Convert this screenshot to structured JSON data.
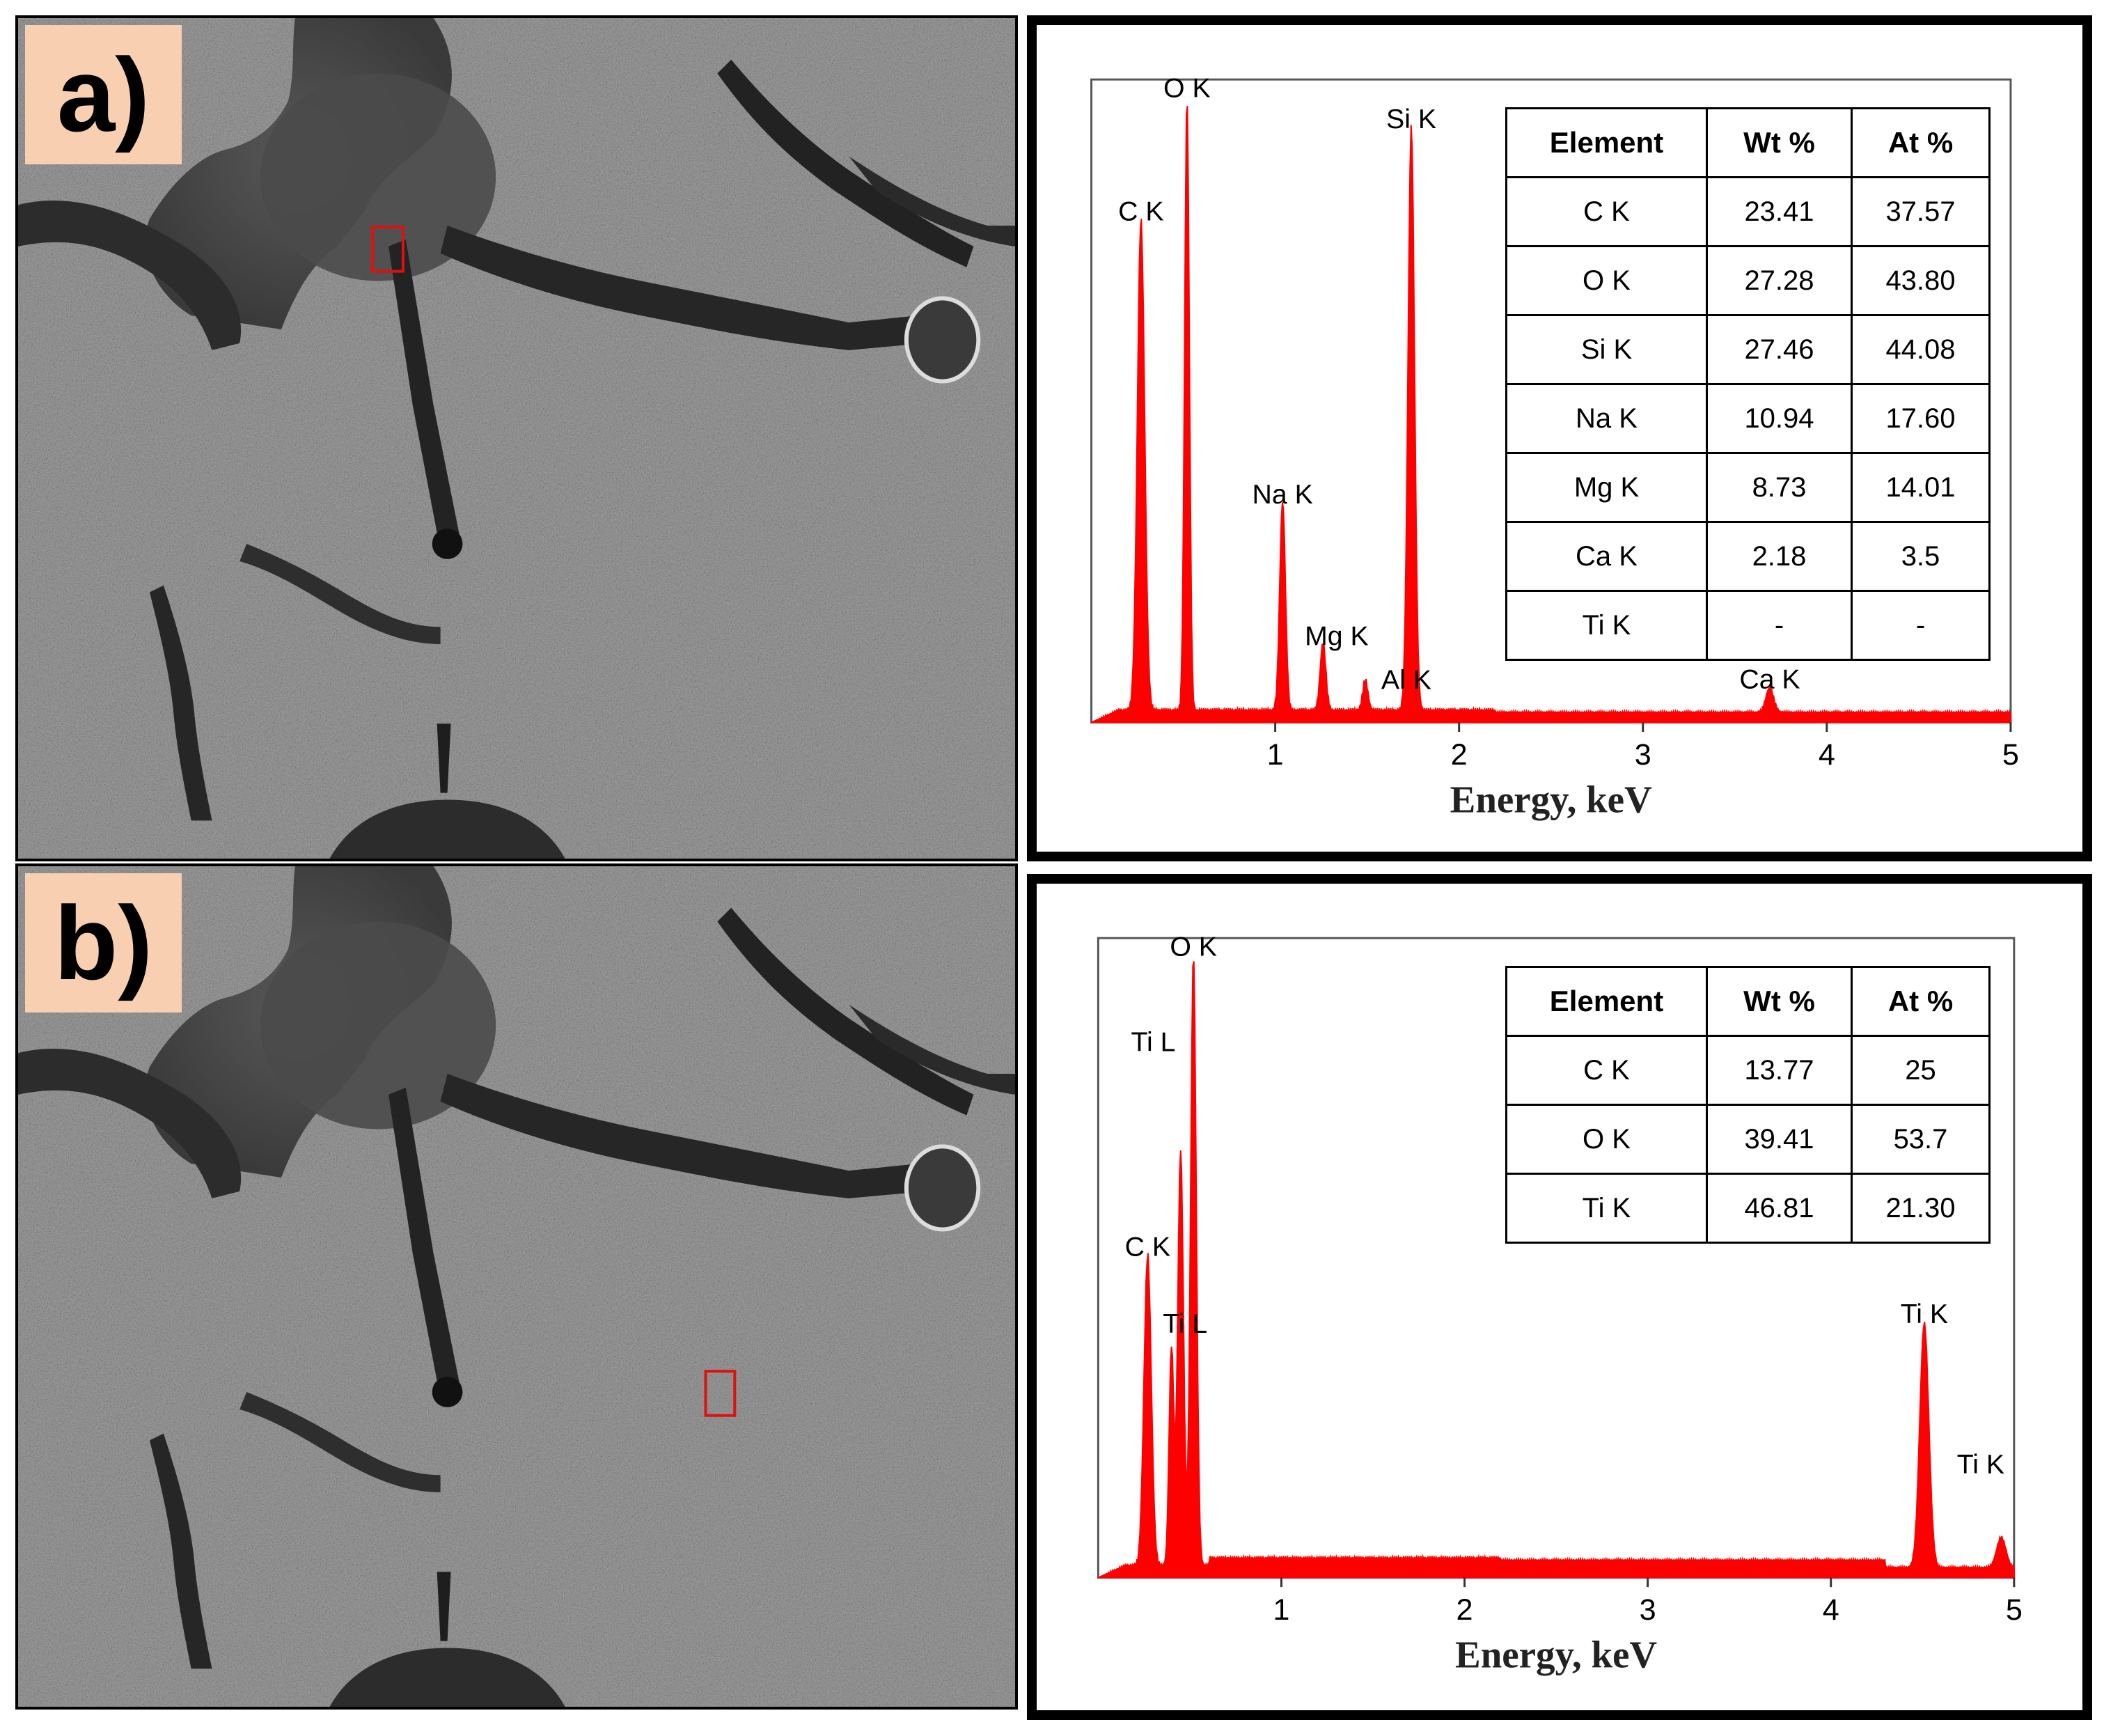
{
  "panels": [
    {
      "label": "a)"
    },
    {
      "label": "b)"
    }
  ],
  "colors": {
    "spectrum": "#ff0000",
    "label_bg": "#f8cfb0",
    "frame": "#000000",
    "marker": "#e01010"
  },
  "chart_data": [
    {
      "type": "area",
      "xlabel": "Energy, keV",
      "xlim": [
        0,
        5
      ],
      "x_ticks": [
        "1",
        "2",
        "3",
        "4",
        "5"
      ],
      "peaks": [
        {
          "label": "C K",
          "x": 0.27,
          "height": 0.8
        },
        {
          "label": "O K",
          "x": 0.52,
          "height": 1.0
        },
        {
          "label": "Na K",
          "x": 1.04,
          "height": 0.34
        },
        {
          "label": "Mg K",
          "x": 1.26,
          "height": 0.11
        },
        {
          "label": "Al K",
          "x": 1.49,
          "height": 0.05
        },
        {
          "label": "Si K",
          "x": 1.74,
          "height": 0.95
        },
        {
          "label": "Ca K",
          "x": 3.69,
          "height": 0.04
        }
      ],
      "table": {
        "headers": [
          "Element",
          "Wt %",
          "At %"
        ],
        "rows": [
          [
            "C K",
            "23.41",
            "37.57"
          ],
          [
            "O K",
            "27.28",
            "43.80"
          ],
          [
            "Si K",
            "27.46",
            "44.08"
          ],
          [
            "Na K",
            "10.94",
            "17.60"
          ],
          [
            "Mg K",
            "8.73",
            "14.01"
          ],
          [
            "Ca K",
            "2.18",
            "3.5"
          ],
          [
            "Ti K",
            "-",
            "-"
          ]
        ]
      }
    },
    {
      "type": "area",
      "xlabel": "Energy, keV",
      "xlim": [
        0,
        5
      ],
      "x_ticks": [
        "1",
        "2",
        "3",
        "4",
        "5"
      ],
      "peaks": [
        {
          "label": "C K",
          "x": 0.27,
          "height": 0.51
        },
        {
          "label": "Ti L",
          "x": 0.4,
          "height": 0.36
        },
        {
          "label": "Ti L",
          "x": 0.45,
          "height": 0.68
        },
        {
          "label": "O K",
          "x": 0.52,
          "height": 1.0
        },
        {
          "label": "Ti K",
          "x": 4.51,
          "height": 0.4
        },
        {
          "label": "Ti K",
          "x": 4.93,
          "height": 0.05
        }
      ],
      "table": {
        "headers": [
          "Element",
          "Wt %",
          "At %"
        ],
        "rows": [
          [
            "C K",
            "13.77",
            "25"
          ],
          [
            "O K",
            "39.41",
            "53.7"
          ],
          [
            "Ti K",
            "46.81",
            "21.30"
          ]
        ]
      }
    }
  ]
}
